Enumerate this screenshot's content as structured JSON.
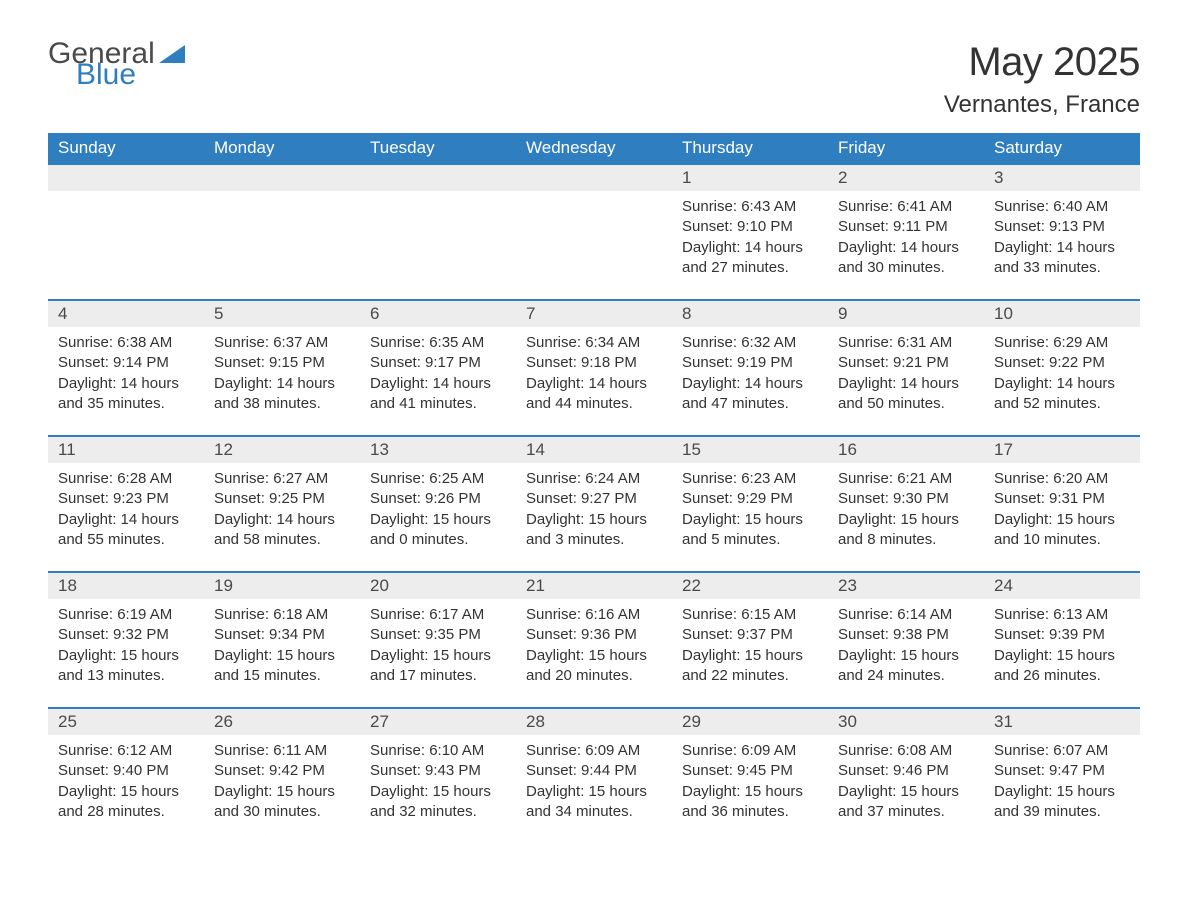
{
  "logo": {
    "word1": "General",
    "word2": "Blue"
  },
  "title": "May 2025",
  "location": "Vernantes, France",
  "colors": {
    "accent": "#2f7ec0",
    "band": "#ededed",
    "text": "#333333",
    "background": "#ffffff"
  },
  "weekdays": [
    "Sunday",
    "Monday",
    "Tuesday",
    "Wednesday",
    "Thursday",
    "Friday",
    "Saturday"
  ],
  "labels": {
    "sunrise": "Sunrise:",
    "sunset": "Sunset:",
    "daylight": "Daylight:"
  },
  "startOffset": 4,
  "days": [
    {
      "n": "1",
      "sunrise": "6:43 AM",
      "sunset": "9:10 PM",
      "daylight": "14 hours and 27 minutes."
    },
    {
      "n": "2",
      "sunrise": "6:41 AM",
      "sunset": "9:11 PM",
      "daylight": "14 hours and 30 minutes."
    },
    {
      "n": "3",
      "sunrise": "6:40 AM",
      "sunset": "9:13 PM",
      "daylight": "14 hours and 33 minutes."
    },
    {
      "n": "4",
      "sunrise": "6:38 AM",
      "sunset": "9:14 PM",
      "daylight": "14 hours and 35 minutes."
    },
    {
      "n": "5",
      "sunrise": "6:37 AM",
      "sunset": "9:15 PM",
      "daylight": "14 hours and 38 minutes."
    },
    {
      "n": "6",
      "sunrise": "6:35 AM",
      "sunset": "9:17 PM",
      "daylight": "14 hours and 41 minutes."
    },
    {
      "n": "7",
      "sunrise": "6:34 AM",
      "sunset": "9:18 PM",
      "daylight": "14 hours and 44 minutes."
    },
    {
      "n": "8",
      "sunrise": "6:32 AM",
      "sunset": "9:19 PM",
      "daylight": "14 hours and 47 minutes."
    },
    {
      "n": "9",
      "sunrise": "6:31 AM",
      "sunset": "9:21 PM",
      "daylight": "14 hours and 50 minutes."
    },
    {
      "n": "10",
      "sunrise": "6:29 AM",
      "sunset": "9:22 PM",
      "daylight": "14 hours and 52 minutes."
    },
    {
      "n": "11",
      "sunrise": "6:28 AM",
      "sunset": "9:23 PM",
      "daylight": "14 hours and 55 minutes."
    },
    {
      "n": "12",
      "sunrise": "6:27 AM",
      "sunset": "9:25 PM",
      "daylight": "14 hours and 58 minutes."
    },
    {
      "n": "13",
      "sunrise": "6:25 AM",
      "sunset": "9:26 PM",
      "daylight": "15 hours and 0 minutes."
    },
    {
      "n": "14",
      "sunrise": "6:24 AM",
      "sunset": "9:27 PM",
      "daylight": "15 hours and 3 minutes."
    },
    {
      "n": "15",
      "sunrise": "6:23 AM",
      "sunset": "9:29 PM",
      "daylight": "15 hours and 5 minutes."
    },
    {
      "n": "16",
      "sunrise": "6:21 AM",
      "sunset": "9:30 PM",
      "daylight": "15 hours and 8 minutes."
    },
    {
      "n": "17",
      "sunrise": "6:20 AM",
      "sunset": "9:31 PM",
      "daylight": "15 hours and 10 minutes."
    },
    {
      "n": "18",
      "sunrise": "6:19 AM",
      "sunset": "9:32 PM",
      "daylight": "15 hours and 13 minutes."
    },
    {
      "n": "19",
      "sunrise": "6:18 AM",
      "sunset": "9:34 PM",
      "daylight": "15 hours and 15 minutes."
    },
    {
      "n": "20",
      "sunrise": "6:17 AM",
      "sunset": "9:35 PM",
      "daylight": "15 hours and 17 minutes."
    },
    {
      "n": "21",
      "sunrise": "6:16 AM",
      "sunset": "9:36 PM",
      "daylight": "15 hours and 20 minutes."
    },
    {
      "n": "22",
      "sunrise": "6:15 AM",
      "sunset": "9:37 PM",
      "daylight": "15 hours and 22 minutes."
    },
    {
      "n": "23",
      "sunrise": "6:14 AM",
      "sunset": "9:38 PM",
      "daylight": "15 hours and 24 minutes."
    },
    {
      "n": "24",
      "sunrise": "6:13 AM",
      "sunset": "9:39 PM",
      "daylight": "15 hours and 26 minutes."
    },
    {
      "n": "25",
      "sunrise": "6:12 AM",
      "sunset": "9:40 PM",
      "daylight": "15 hours and 28 minutes."
    },
    {
      "n": "26",
      "sunrise": "6:11 AM",
      "sunset": "9:42 PM",
      "daylight": "15 hours and 30 minutes."
    },
    {
      "n": "27",
      "sunrise": "6:10 AM",
      "sunset": "9:43 PM",
      "daylight": "15 hours and 32 minutes."
    },
    {
      "n": "28",
      "sunrise": "6:09 AM",
      "sunset": "9:44 PM",
      "daylight": "15 hours and 34 minutes."
    },
    {
      "n": "29",
      "sunrise": "6:09 AM",
      "sunset": "9:45 PM",
      "daylight": "15 hours and 36 minutes."
    },
    {
      "n": "30",
      "sunrise": "6:08 AM",
      "sunset": "9:46 PM",
      "daylight": "15 hours and 37 minutes."
    },
    {
      "n": "31",
      "sunrise": "6:07 AM",
      "sunset": "9:47 PM",
      "daylight": "15 hours and 39 minutes."
    }
  ]
}
